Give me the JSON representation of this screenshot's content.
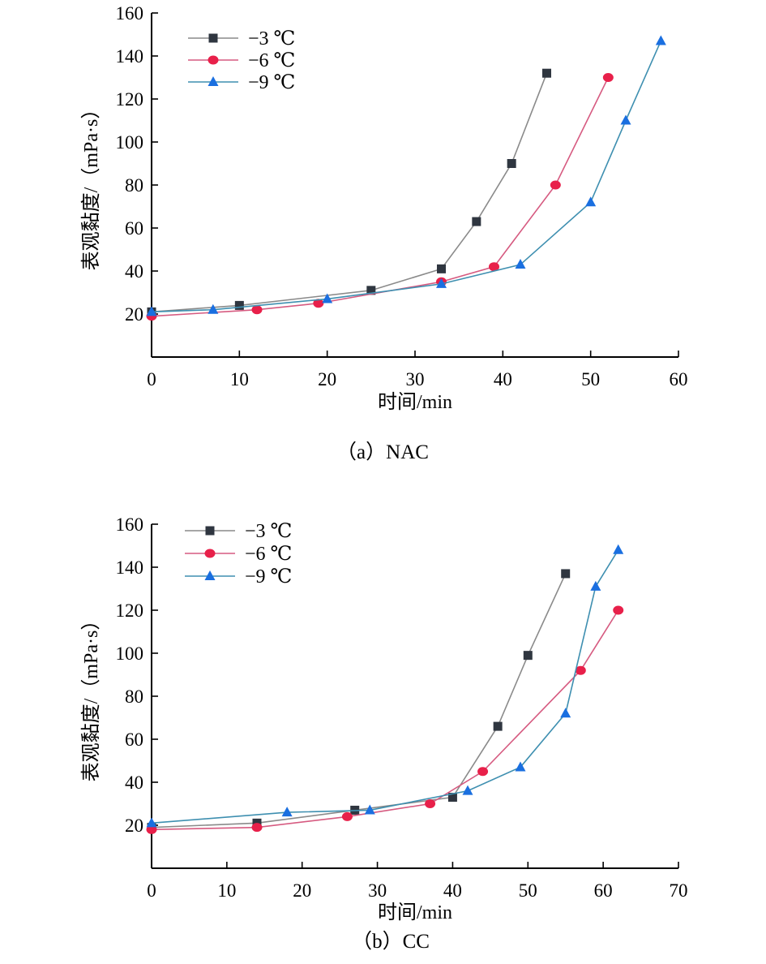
{
  "chart_data": [
    {
      "type": "line",
      "caption": "（a）NAC",
      "xlabel": "时间/min",
      "ylabel": "表观黏度/（mPa·s）",
      "xlim": [
        0,
        60
      ],
      "ylim": [
        0,
        160
      ],
      "xticks": [
        0,
        10,
        20,
        30,
        40,
        50,
        60
      ],
      "yticks": [
        20,
        40,
        60,
        80,
        100,
        120,
        140,
        160
      ],
      "grid": false,
      "legend_position": "top-left",
      "series": [
        {
          "name": "−3 ℃",
          "color": "#8a8a8a",
          "marker_color": "#2f3640",
          "marker": "square",
          "x": [
            0,
            10,
            25,
            33,
            37,
            41,
            45
          ],
          "y": [
            21,
            24,
            31,
            41,
            63,
            90,
            132
          ]
        },
        {
          "name": "−6 ℃",
          "color": "#d65a80",
          "marker_color": "#e8204a",
          "marker": "circle",
          "x": [
            0,
            12,
            19,
            33,
            39,
            46,
            52
          ],
          "y": [
            19,
            22,
            25,
            35,
            42,
            80,
            130
          ]
        },
        {
          "name": "−9 ℃",
          "color": "#3e8fb0",
          "marker_color": "#1a6fe0",
          "marker": "triangle",
          "x": [
            0,
            7,
            20,
            33,
            42,
            50,
            54,
            58
          ],
          "y": [
            21,
            22,
            27,
            34,
            43,
            72,
            110,
            147
          ]
        }
      ]
    },
    {
      "type": "line",
      "caption": "（b）CC",
      "xlabel": "时间/min",
      "ylabel": "表观黏度/（mPa·s）",
      "xlim": [
        0,
        70
      ],
      "ylim": [
        0,
        160
      ],
      "xticks": [
        0,
        10,
        20,
        30,
        40,
        50,
        60,
        70
      ],
      "yticks": [
        20,
        40,
        60,
        80,
        100,
        120,
        140,
        160
      ],
      "grid": false,
      "legend_position": "top-left",
      "series": [
        {
          "name": "−3 ℃",
          "color": "#8a8a8a",
          "marker_color": "#2f3640",
          "marker": "square",
          "x": [
            0,
            14,
            27,
            40,
            46,
            50,
            55
          ],
          "y": [
            19,
            21,
            27,
            33,
            66,
            99,
            137
          ]
        },
        {
          "name": "−6 ℃",
          "color": "#d65a80",
          "marker_color": "#e8204a",
          "marker": "circle",
          "x": [
            0,
            14,
            26,
            37,
            44,
            57,
            62
          ],
          "y": [
            18,
            19,
            24,
            30,
            45,
            92,
            120
          ]
        },
        {
          "name": "−9 ℃",
          "color": "#3e8fb0",
          "marker_color": "#1a6fe0",
          "marker": "triangle",
          "x": [
            0,
            18,
            29,
            42,
            49,
            55,
            59,
            62
          ],
          "y": [
            21,
            26,
            27,
            36,
            47,
            72,
            131,
            148
          ]
        }
      ]
    }
  ]
}
